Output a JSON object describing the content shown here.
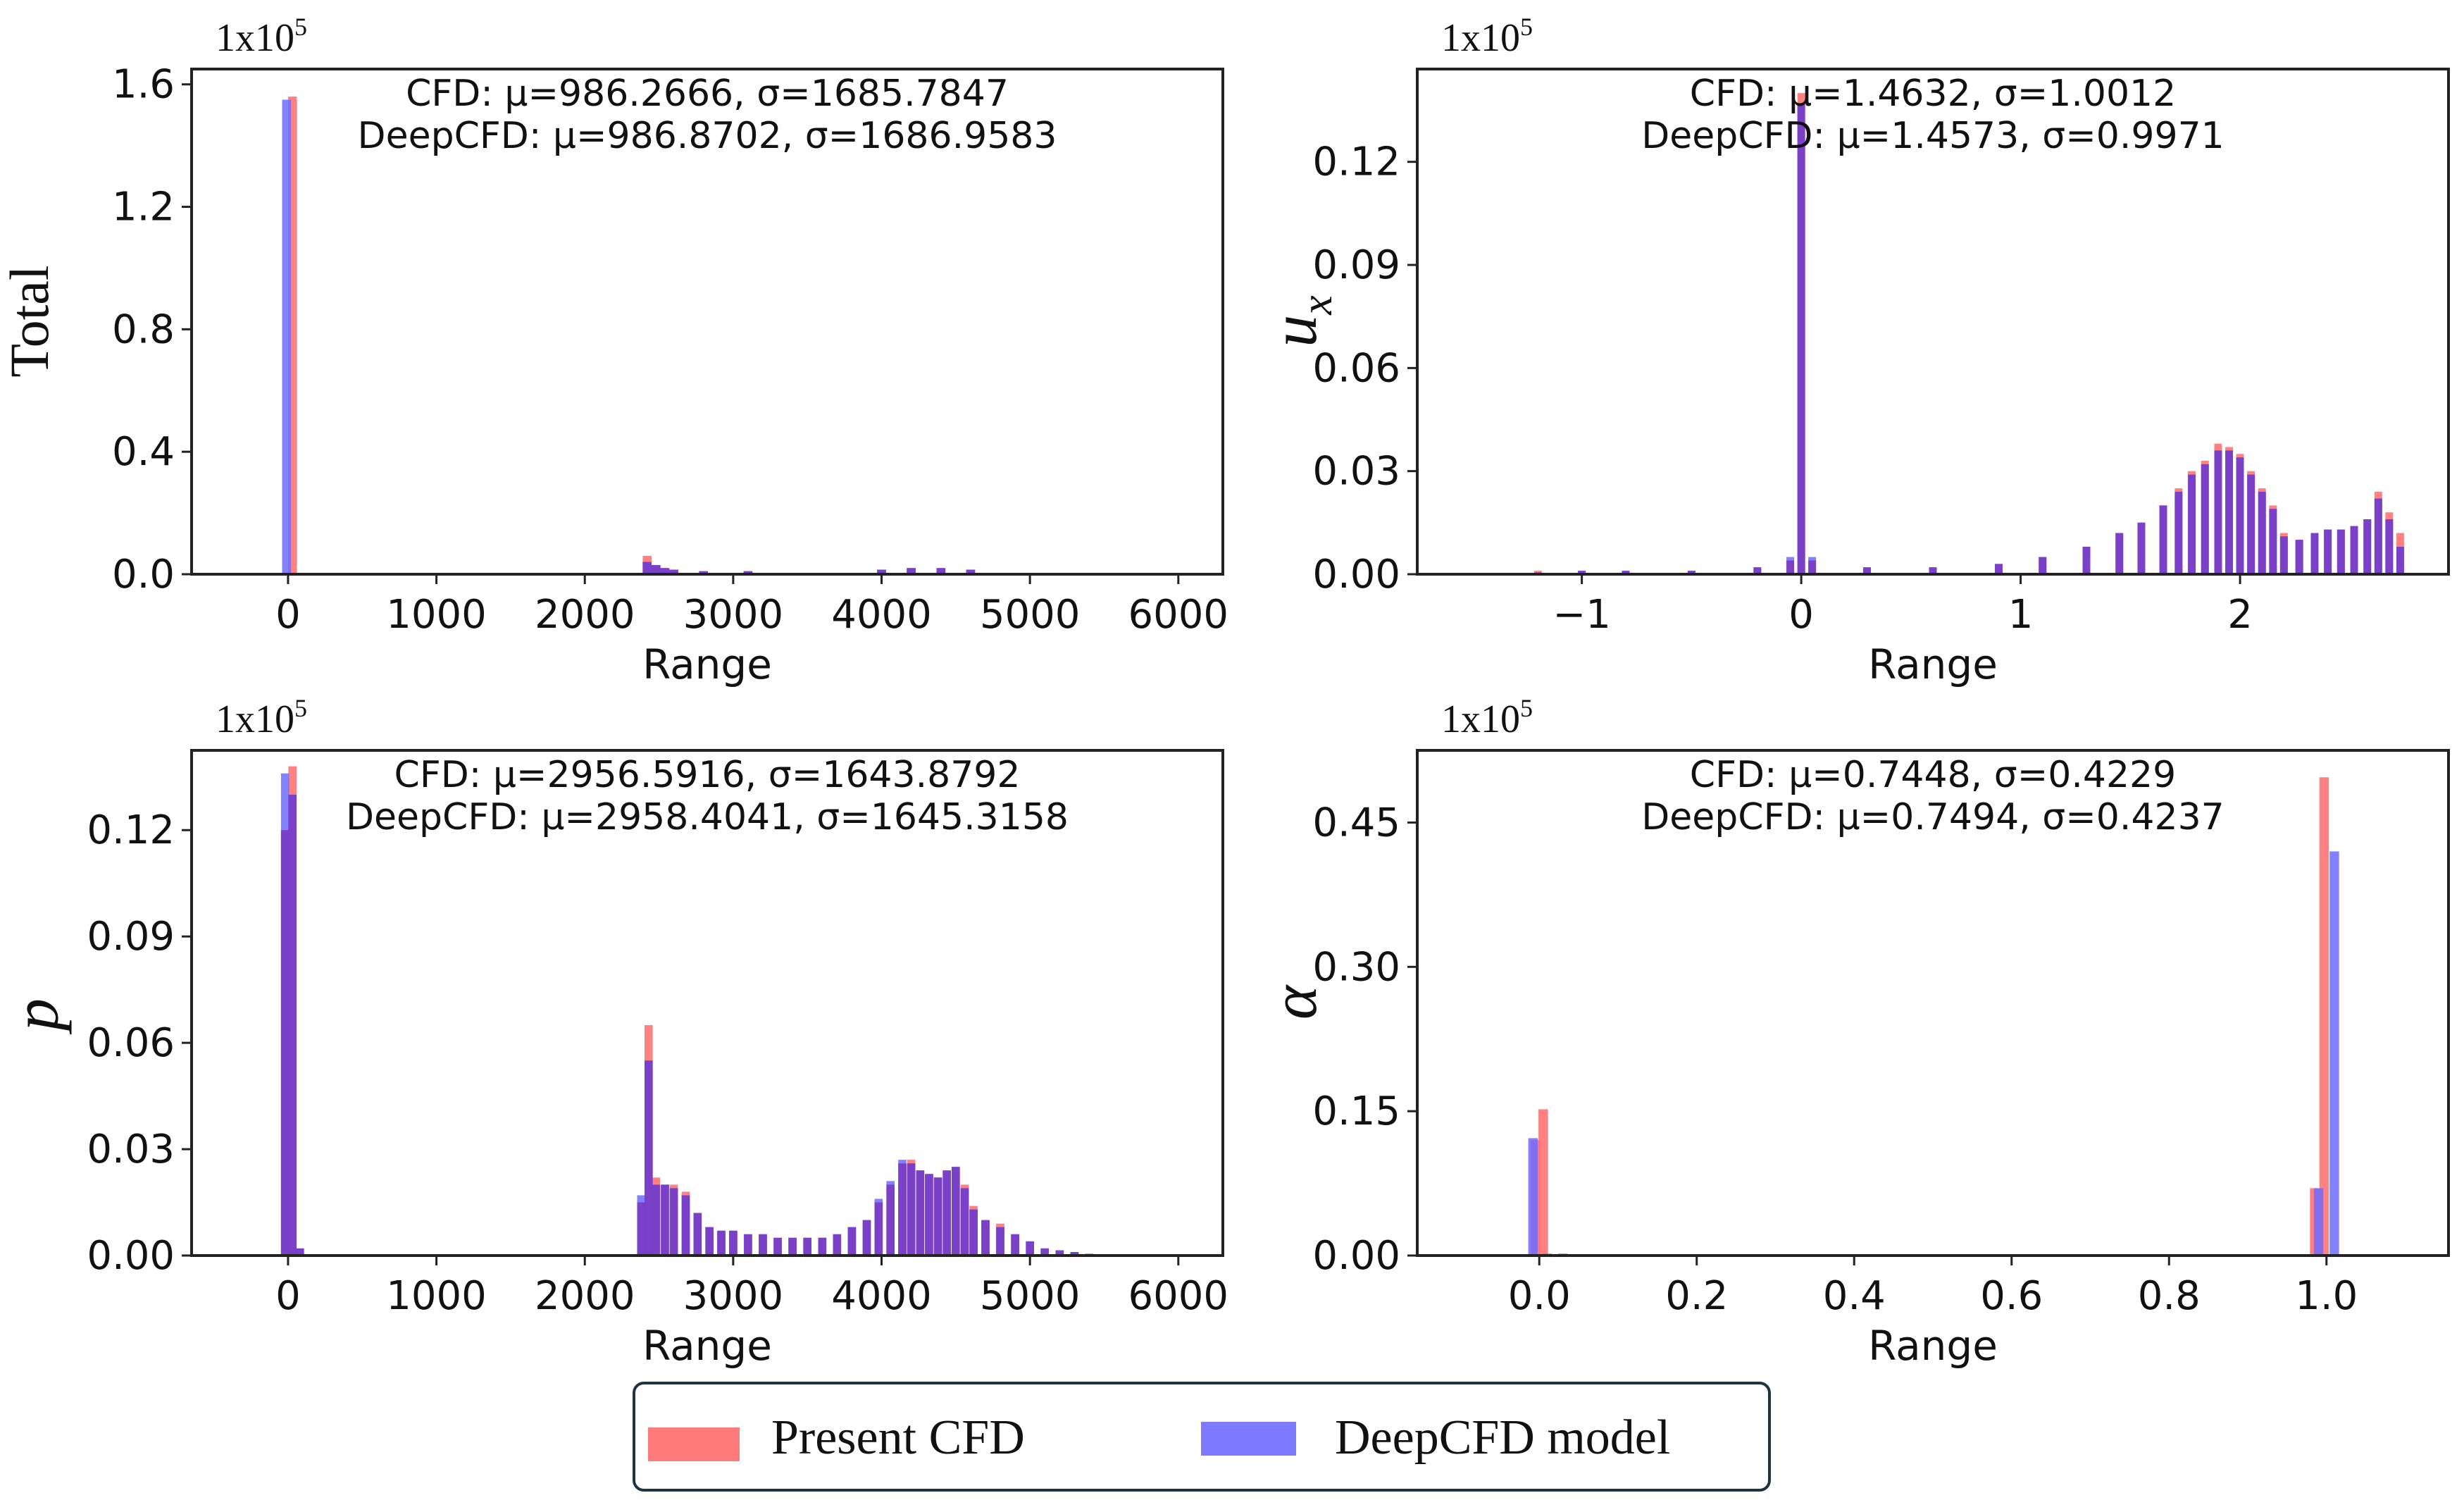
{
  "legend": {
    "items": [
      {
        "label": "Present CFD",
        "color": "#ff6b6b"
      },
      {
        "label": "DeepCFD model",
        "color": "#6f6bff"
      }
    ]
  },
  "colors": {
    "cfd": "#ff6b6b",
    "deepcfd": "#6f6bff",
    "overlap": "#7a3cc4",
    "frame": "#222222"
  },
  "chart_data": [
    {
      "type": "bar",
      "title": "",
      "xlabel": "Range",
      "ylabel": "Total",
      "ylabel_style": "serif",
      "sci_label": "1x10",
      "sci_exp": "5",
      "stats": [
        "CFD: μ=986.2666, σ=1685.7847",
        "DeepCFD: μ=986.8702, σ=1686.9583"
      ],
      "xlim": [
        -650,
        6300
      ],
      "ylim": [
        0,
        1.65
      ],
      "xticks": [
        0,
        1000,
        2000,
        3000,
        4000,
        5000,
        6000
      ],
      "xtick_labels": [
        "0",
        "1000",
        "2000",
        "3000",
        "4000",
        "5000",
        "6000"
      ],
      "yticks": [
        0,
        0.4,
        0.8,
        1.2,
        1.6
      ],
      "ytick_labels": [
        "0.0",
        "0.4",
        "0.8",
        "1.2",
        "1.6"
      ],
      "bin_width": 60,
      "series": [
        {
          "name": "Present CFD",
          "x": [
            30,
            2420,
            2480,
            2540,
            2600,
            2800,
            3100,
            4000,
            4200,
            4400,
            4600
          ],
          "values": [
            1.56,
            0.06,
            0.03,
            0.02,
            0.015,
            0.01,
            0.01,
            0.015,
            0.02,
            0.02,
            0.015
          ]
        },
        {
          "name": "DeepCFD model",
          "x": [
            -10,
            2420,
            2480,
            2540,
            2600,
            2800,
            3100,
            4000,
            4200,
            4400,
            4600
          ],
          "values": [
            1.55,
            0.04,
            0.03,
            0.02,
            0.015,
            0.01,
            0.01,
            0.015,
            0.02,
            0.02,
            0.015
          ]
        }
      ]
    },
    {
      "type": "bar",
      "title": "",
      "xlabel": "Range",
      "ylabel": "u",
      "ylabel_sub": "x",
      "ylabel_style": "italic",
      "sci_label": "1x10",
      "sci_exp": "5",
      "stats": [
        "CFD: μ=1.4632, σ=1.0012",
        "DeepCFD: μ=1.4573, σ=0.9971"
      ],
      "xlim": [
        -1.75,
        2.95
      ],
      "ylim": [
        0,
        0.147
      ],
      "xticks": [
        -1,
        0,
        1,
        2
      ],
      "xtick_labels": [
        "−1",
        "0",
        "1",
        "2"
      ],
      "yticks": [
        0,
        0.03,
        0.06,
        0.09,
        0.12
      ],
      "ytick_labels": [
        "0.00",
        "0.03",
        "0.06",
        "0.09",
        "0.12"
      ],
      "bin_width": 0.035,
      "series": [
        {
          "name": "Present CFD",
          "x": [
            -1.2,
            -1.0,
            -0.8,
            -0.5,
            -0.2,
            -0.05,
            0.0,
            0.05,
            0.3,
            0.6,
            0.9,
            1.1,
            1.3,
            1.45,
            1.55,
            1.65,
            1.72,
            1.78,
            1.84,
            1.9,
            1.95,
            2.0,
            2.05,
            2.1,
            2.15,
            2.2,
            2.27,
            2.34,
            2.4,
            2.46,
            2.52,
            2.58,
            2.63,
            2.68,
            2.73
          ],
          "values": [
            0.001,
            0.001,
            0.001,
            0.001,
            0.002,
            0.004,
            0.14,
            0.004,
            0.002,
            0.002,
            0.003,
            0.005,
            0.008,
            0.012,
            0.015,
            0.02,
            0.025,
            0.03,
            0.033,
            0.038,
            0.037,
            0.035,
            0.03,
            0.025,
            0.02,
            0.012,
            0.01,
            0.012,
            0.013,
            0.013,
            0.014,
            0.016,
            0.024,
            0.018,
            0.012
          ]
        },
        {
          "name": "DeepCFD model",
          "x": [
            -1.2,
            -1.0,
            -0.8,
            -0.5,
            -0.2,
            -0.05,
            0.0,
            0.05,
            0.3,
            0.6,
            0.9,
            1.1,
            1.3,
            1.45,
            1.55,
            1.65,
            1.72,
            1.78,
            1.84,
            1.9,
            1.95,
            2.0,
            2.05,
            2.1,
            2.15,
            2.2,
            2.27,
            2.34,
            2.4,
            2.46,
            2.52,
            2.58,
            2.63,
            2.68,
            2.73
          ],
          "values": [
            0.0005,
            0.001,
            0.001,
            0.001,
            0.002,
            0.005,
            0.137,
            0.005,
            0.002,
            0.002,
            0.003,
            0.005,
            0.008,
            0.012,
            0.015,
            0.02,
            0.024,
            0.029,
            0.032,
            0.036,
            0.036,
            0.034,
            0.029,
            0.024,
            0.019,
            0.011,
            0.01,
            0.012,
            0.013,
            0.013,
            0.014,
            0.016,
            0.022,
            0.016,
            0.008
          ]
        }
      ]
    },
    {
      "type": "bar",
      "title": "",
      "xlabel": "Range",
      "ylabel": "p",
      "ylabel_style": "italic",
      "sci_label": "1x10",
      "sci_exp": "5",
      "stats": [
        "CFD: μ=2956.5916, σ=1643.8792",
        "DeepCFD: μ=2958.4041, σ=1645.3158"
      ],
      "xlim": [
        -650,
        6300
      ],
      "ylim": [
        0,
        0.1425
      ],
      "xticks": [
        0,
        1000,
        2000,
        3000,
        4000,
        5000,
        6000
      ],
      "xtick_labels": [
        "0",
        "1000",
        "2000",
        "3000",
        "4000",
        "5000",
        "6000"
      ],
      "yticks": [
        0,
        0.03,
        0.06,
        0.09,
        0.12
      ],
      "ytick_labels": [
        "0.00",
        "0.03",
        "0.06",
        "0.09",
        "0.12"
      ],
      "bin_width": 55,
      "series": [
        {
          "name": "Present CFD",
          "x": [
            -20,
            30,
            80,
            2380,
            2430,
            2480,
            2540,
            2600,
            2680,
            2760,
            2840,
            2920,
            3000,
            3100,
            3200,
            3300,
            3400,
            3500,
            3600,
            3700,
            3800,
            3900,
            3980,
            4060,
            4140,
            4200,
            4260,
            4320,
            4380,
            4440,
            4500,
            4560,
            4620,
            4700,
            4800,
            4900,
            5000,
            5100,
            5200,
            5300,
            5400
          ],
          "values": [
            0.12,
            0.138,
            0.002,
            0.015,
            0.065,
            0.022,
            0.02,
            0.02,
            0.018,
            0.012,
            0.008,
            0.007,
            0.007,
            0.006,
            0.006,
            0.005,
            0.005,
            0.005,
            0.005,
            0.006,
            0.008,
            0.01,
            0.015,
            0.02,
            0.026,
            0.027,
            0.024,
            0.023,
            0.022,
            0.024,
            0.025,
            0.02,
            0.014,
            0.01,
            0.009,
            0.006,
            0.004,
            0.002,
            0.0015,
            0.001,
            0.0005
          ]
        },
        {
          "name": "DeepCFD model",
          "x": [
            -20,
            30,
            80,
            2380,
            2430,
            2480,
            2540,
            2600,
            2680,
            2760,
            2840,
            2920,
            3000,
            3100,
            3200,
            3300,
            3400,
            3500,
            3600,
            3700,
            3800,
            3900,
            3980,
            4060,
            4140,
            4200,
            4260,
            4320,
            4380,
            4440,
            4500,
            4560,
            4620,
            4700,
            4800,
            4900,
            5000,
            5100,
            5200,
            5300,
            5400
          ],
          "values": [
            0.136,
            0.13,
            0.002,
            0.017,
            0.055,
            0.02,
            0.02,
            0.019,
            0.017,
            0.012,
            0.008,
            0.007,
            0.007,
            0.006,
            0.006,
            0.005,
            0.005,
            0.005,
            0.005,
            0.006,
            0.008,
            0.01,
            0.016,
            0.021,
            0.027,
            0.026,
            0.024,
            0.023,
            0.022,
            0.024,
            0.025,
            0.019,
            0.013,
            0.01,
            0.008,
            0.006,
            0.004,
            0.002,
            0.0015,
            0.001,
            0.0005
          ]
        }
      ]
    },
    {
      "type": "bar",
      "title": "",
      "xlabel": "Range",
      "ylabel": "α",
      "ylabel_style": "italic",
      "sci_label": "1x10",
      "sci_exp": "5",
      "stats": [
        "CFD: μ=0.7448, σ=0.4229",
        "DeepCFD: μ=0.7494, σ=0.4237"
      ],
      "xlim": [
        -0.155,
        1.155
      ],
      "ylim": [
        0,
        0.525
      ],
      "xticks": [
        0.0,
        0.2,
        0.4,
        0.6,
        0.8,
        1.0
      ],
      "xtick_labels": [
        "0.0",
        "0.2",
        "0.4",
        "0.6",
        "0.8",
        "1.0"
      ],
      "yticks": [
        0,
        0.15,
        0.3,
        0.45
      ],
      "ytick_labels": [
        "0.00",
        "0.15",
        "0.30",
        "0.45"
      ],
      "bin_width": 0.012,
      "series": [
        {
          "name": "Present CFD",
          "x": [
            -0.005,
            0.005,
            0.985,
            0.997
          ],
          "values": [
            0.12,
            0.152,
            0.07,
            0.497
          ]
        },
        {
          "name": "DeepCFD model",
          "x": [
            -0.008,
            0.01,
            0.03,
            0.99,
            1.01
          ],
          "values": [
            0.122,
            0.002,
            0.002,
            0.07,
            0.42
          ]
        }
      ]
    }
  ]
}
